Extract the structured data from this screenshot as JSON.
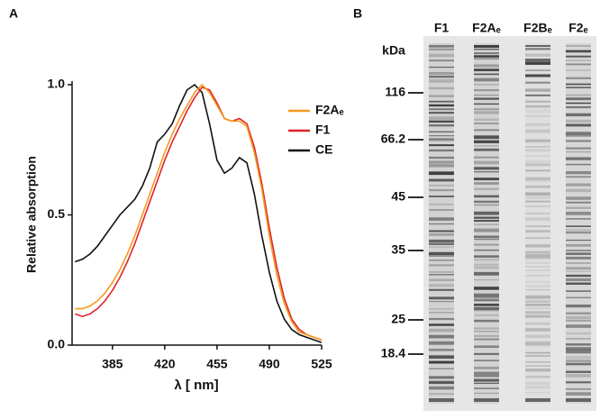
{
  "chart_data": {
    "type": "line",
    "panel_label": "A",
    "x_label": "λ [ nm]",
    "y_label": "Relative absorption",
    "x": [
      360,
      365,
      370,
      375,
      380,
      385,
      390,
      395,
      400,
      405,
      410,
      415,
      420,
      425,
      430,
      435,
      440,
      445,
      450,
      455,
      460,
      465,
      470,
      475,
      480,
      485,
      490,
      495,
      500,
      505,
      510,
      515,
      520,
      525
    ],
    "series": [
      {
        "name": "F2Aₑ",
        "color": "#f39a1e",
        "values": [
          0.14,
          0.14,
          0.15,
          0.17,
          0.2,
          0.24,
          0.29,
          0.35,
          0.42,
          0.5,
          0.58,
          0.66,
          0.74,
          0.81,
          0.87,
          0.92,
          0.97,
          1.0,
          0.97,
          0.92,
          0.87,
          0.86,
          0.86,
          0.84,
          0.74,
          0.6,
          0.42,
          0.27,
          0.16,
          0.09,
          0.05,
          0.04,
          0.03,
          0.02
        ]
      },
      {
        "name": "F1",
        "color": "#e0242a",
        "values": [
          0.12,
          0.11,
          0.12,
          0.14,
          0.17,
          0.21,
          0.26,
          0.32,
          0.39,
          0.47,
          0.55,
          0.63,
          0.71,
          0.78,
          0.84,
          0.9,
          0.95,
          0.99,
          0.98,
          0.93,
          0.87,
          0.86,
          0.87,
          0.85,
          0.76,
          0.62,
          0.45,
          0.3,
          0.18,
          0.1,
          0.06,
          0.04,
          0.03,
          0.02
        ]
      },
      {
        "name": "CE",
        "color": "#111111",
        "values": [
          0.32,
          0.33,
          0.35,
          0.38,
          0.42,
          0.46,
          0.5,
          0.53,
          0.56,
          0.61,
          0.68,
          0.78,
          0.81,
          0.85,
          0.92,
          0.98,
          1.0,
          0.97,
          0.85,
          0.71,
          0.66,
          0.68,
          0.72,
          0.7,
          0.58,
          0.42,
          0.28,
          0.17,
          0.1,
          0.06,
          0.04,
          0.03,
          0.02,
          0.01
        ]
      }
    ],
    "xlim": [
      358,
      525
    ],
    "xticks": [
      385,
      420,
      455,
      490,
      525
    ],
    "ylim": [
      0,
      1.0
    ],
    "yticks": [
      {
        "value": 0,
        "label": "0.0"
      },
      0.5,
      {
        "value": 1.0,
        "label": "1.0"
      }
    ],
    "legend": "right"
  },
  "gel": {
    "panel_label": "B",
    "unit": "kDa",
    "lanes": [
      "F1",
      "F2Aₑ",
      "F2Bₑ",
      "F2ₑ"
    ],
    "markers": [
      116,
      66.2,
      45,
      35,
      25,
      18.4
    ]
  }
}
